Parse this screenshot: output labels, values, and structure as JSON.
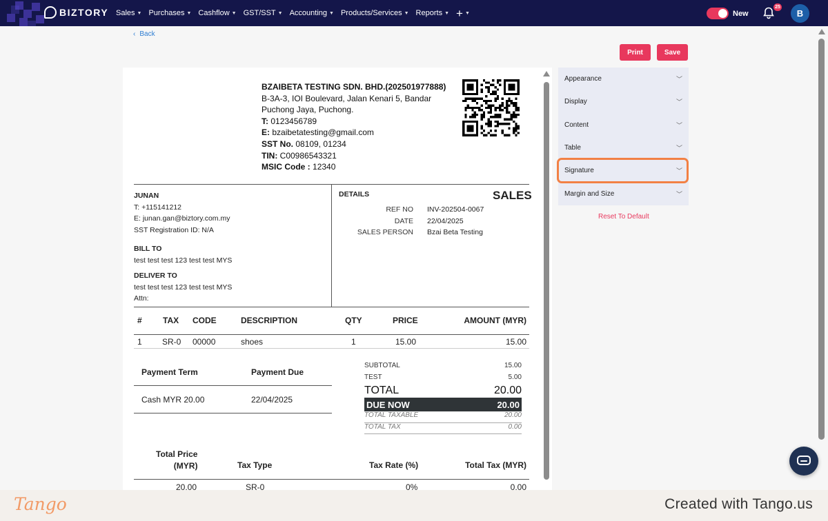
{
  "app": {
    "brand": "BIZTORY"
  },
  "nav": {
    "items": [
      {
        "label": "Sales"
      },
      {
        "label": "Purchases"
      },
      {
        "label": "Cashflow"
      },
      {
        "label": "GST/SST"
      },
      {
        "label": "Accounting"
      },
      {
        "label": "Products/Services"
      },
      {
        "label": "Reports"
      }
    ],
    "plus_label": "+",
    "toggle_label": "New",
    "notification_count": "25",
    "avatar_initial": "B"
  },
  "page": {
    "back_label": "Back",
    "print_label": "Print",
    "save_label": "Save"
  },
  "company": {
    "name": "BZAIBETA TESTING SDN. BHD.(202501977888)",
    "address1": "B-3A-3, IOI Boulevard, Jalan Kenari 5, Bandar",
    "address2": "Puchong Jaya, Puchong.",
    "phone_label": "T:",
    "phone": "0123456789",
    "email_label": "E:",
    "email": "bzaibetatesting@gmail.com",
    "sst_label": "SST No.",
    "sst": "08109, 01234",
    "tin_label": "TIN:",
    "tin": "C00986543321",
    "msic_label": "MSIC Code :",
    "msic": "12340"
  },
  "customer": {
    "name": "JUNAN",
    "phone": "T: +115141212",
    "email": "E: junan.gan@biztory.com.my",
    "sst": "SST Registration ID: N/A",
    "bill_to_label": "BILL TO",
    "bill_to": "test test test 123 test test MYS",
    "deliver_to_label": "DELIVER TO",
    "deliver_to": "test test test 123 test test MYS",
    "attn": "Attn:"
  },
  "details": {
    "heading": "DETAILS",
    "doc_type": "SALES",
    "ref_label": "REF NO",
    "ref": "INV-202504-0067",
    "date_label": "DATE",
    "date": "22/04/2025",
    "salesperson_label": "SALES PERSON",
    "salesperson": "Bzai Beta Testing"
  },
  "items": {
    "headers": {
      "no": "#",
      "tax": "TAX",
      "code": "CODE",
      "desc": "DESCRIPTION",
      "qty": "QTY",
      "price": "PRICE",
      "amount": "AMOUNT (MYR)"
    },
    "rows": [
      {
        "no": "1",
        "tax": "SR-0",
        "code": "00000",
        "desc": "shoes",
        "qty": "1",
        "price": "15.00",
        "amount": "15.00"
      }
    ]
  },
  "payment": {
    "term_header": "Payment Term",
    "due_header": "Payment Due",
    "term": "Cash MYR 20.00",
    "due": "22/04/2025"
  },
  "totals": {
    "subtotal_label": "SUBTOTAL",
    "subtotal": "15.00",
    "test_label": "TEST",
    "test": "5.00",
    "total_label": "TOTAL",
    "total": "20.00",
    "due_now_label": "DUE NOW",
    "due_now": "20.00",
    "taxable_label": "TOTAL TAXABLE",
    "taxable": "20.00",
    "tax_label": "TOTAL TAX",
    "tax": "0.00"
  },
  "tax_summary": {
    "headers": {
      "price1": "Total Price",
      "price2": "(MYR)",
      "type": "Tax Type",
      "rate": "Tax Rate (%)",
      "total": "Total Tax (MYR)"
    },
    "rows": [
      {
        "price": "20.00",
        "type": "SR-0",
        "rate": "0%",
        "total": "0.00"
      }
    ]
  },
  "settings": {
    "sections": [
      {
        "label": "Appearance"
      },
      {
        "label": "Display"
      },
      {
        "label": "Content"
      },
      {
        "label": "Table"
      },
      {
        "label": "Signature"
      },
      {
        "label": "Margin and Size"
      }
    ],
    "reset_label": "Reset To Default"
  },
  "footer": {
    "logo": "Tango",
    "cta": "Created with Tango.us"
  }
}
